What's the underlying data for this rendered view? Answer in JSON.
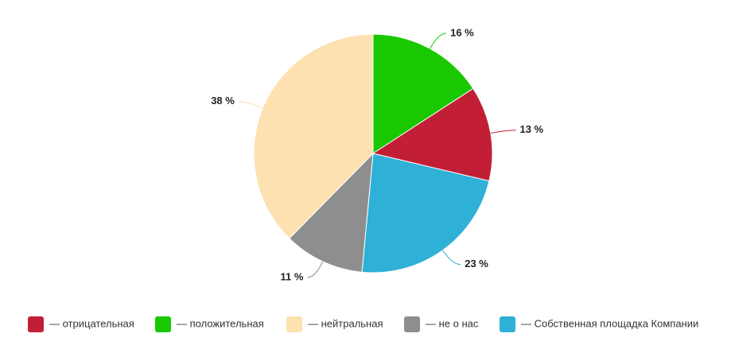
{
  "chart_data": {
    "type": "pie",
    "categories": [
      "— положительная",
      "— отрицательная",
      "— Собственная площадка Компании",
      "— не о нас",
      "— нейтральная"
    ],
    "values": [
      16,
      13,
      23,
      11,
      38
    ],
    "value_labels": [
      "16 %",
      "13 %",
      "23 %",
      "11 %",
      "38 %"
    ],
    "colors": [
      "#19c800",
      "#c21f36",
      "#2fb0d6",
      "#8e8e8e",
      "#fde1b0"
    ],
    "legend": "bottom"
  }
}
